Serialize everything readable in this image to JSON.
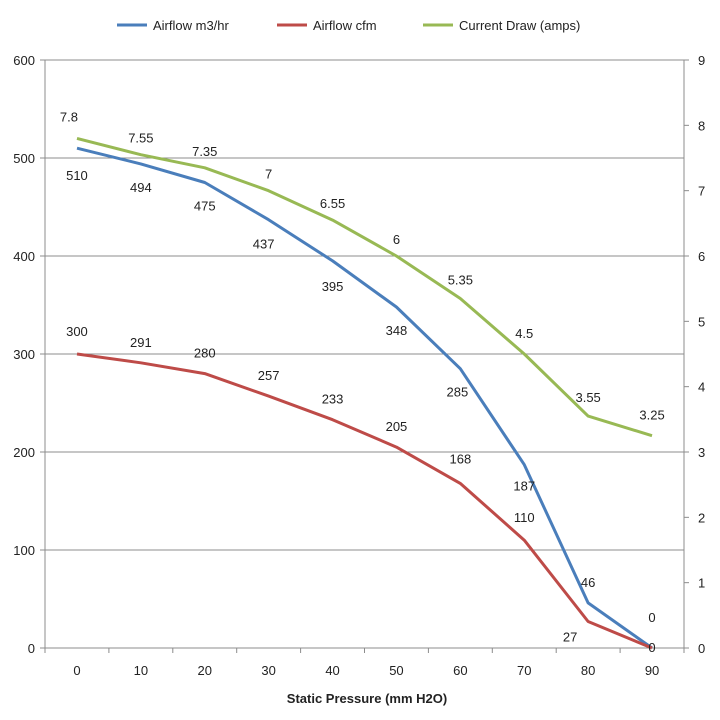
{
  "chart_data": {
    "type": "line",
    "title": "",
    "xlabel": "Static Pressure (mm H2O)",
    "ylabel": "",
    "x": [
      0,
      10,
      20,
      30,
      40,
      50,
      60,
      70,
      80,
      90
    ],
    "x_tick_labels": [
      "0",
      "10",
      "20",
      "30",
      "40",
      "50",
      "60",
      "70",
      "80",
      "90"
    ],
    "ylim_left": [
      0,
      600
    ],
    "y_left_ticks": [
      "0",
      "100",
      "200",
      "300",
      "400",
      "500",
      "600"
    ],
    "ylim_right": [
      0,
      9
    ],
    "y_right_ticks": [
      "0",
      "1",
      "2",
      "3",
      "4",
      "5",
      "6",
      "7",
      "8",
      "9"
    ],
    "grid": "horizontal",
    "legend_position": "top",
    "series": [
      {
        "name": "Airflow m3/hr",
        "color": "#4a7ebb",
        "axis": "left",
        "values": [
          510,
          494,
          475,
          437,
          395,
          348,
          285,
          187,
          46,
          0
        ],
        "labels": [
          "510",
          "494",
          "475",
          "437",
          "395",
          "348",
          "285",
          "187",
          "46",
          "0"
        ]
      },
      {
        "name": "Airflow cfm",
        "color": "#be4b48",
        "axis": "left",
        "values": [
          300,
          291,
          280,
          257,
          233,
          205,
          168,
          110,
          27,
          0
        ],
        "labels": [
          "300",
          "291",
          "280",
          "257",
          "233",
          "205",
          "168",
          "110",
          "27",
          "0"
        ]
      },
      {
        "name": "Current Draw (amps)",
        "color": "#98b954",
        "axis": "right",
        "values": [
          7.8,
          7.55,
          7.35,
          7.0,
          6.55,
          6.0,
          5.35,
          4.5,
          3.55,
          3.25
        ],
        "labels": [
          "7.8",
          "7.55",
          "7.35",
          "7",
          "6.55",
          "6",
          "5.35",
          "4.5",
          "3.55",
          "3.25"
        ]
      }
    ]
  }
}
